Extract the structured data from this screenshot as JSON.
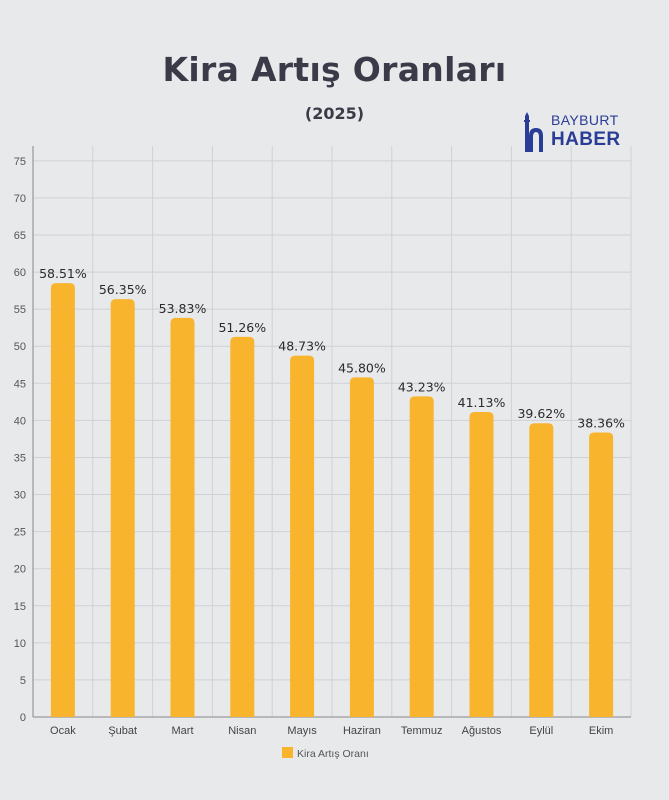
{
  "header": {
    "title": "Kira Artış Oranları",
    "subtitle": "(2025)"
  },
  "logo": {
    "line1": "BAYBURT",
    "line2": "HABER",
    "color": "#2a3d96",
    "icon": "minaret-h-logo-icon"
  },
  "chart_data": {
    "type": "bar",
    "title": "Kira Artış Oranları",
    "subtitle": "(2025)",
    "categories": [
      "Ocak",
      "Şubat",
      "Mart",
      "Nisan",
      "Mayıs",
      "Haziran",
      "Temmuz",
      "Ağustos",
      "Eylül",
      "Ekim"
    ],
    "series": [
      {
        "name": "Kira Artış Oranı",
        "values": [
          58.51,
          56.35,
          53.83,
          51.26,
          48.73,
          45.8,
          43.23,
          41.13,
          39.62,
          38.36
        ],
        "labels": [
          "58.51%",
          "56.35%",
          "53.83%",
          "51.26%",
          "48.73%",
          "45.80%",
          "43.23%",
          "41.13%",
          "39.62%",
          "38.36%"
        ],
        "color": "#f7b42c"
      }
    ],
    "yticks": [
      0,
      5,
      10,
      15,
      20,
      25,
      30,
      35,
      40,
      45,
      50,
      55,
      60,
      65,
      70,
      75
    ],
    "ylim": [
      0,
      77
    ],
    "grid": true,
    "legend_position": "bottom"
  }
}
